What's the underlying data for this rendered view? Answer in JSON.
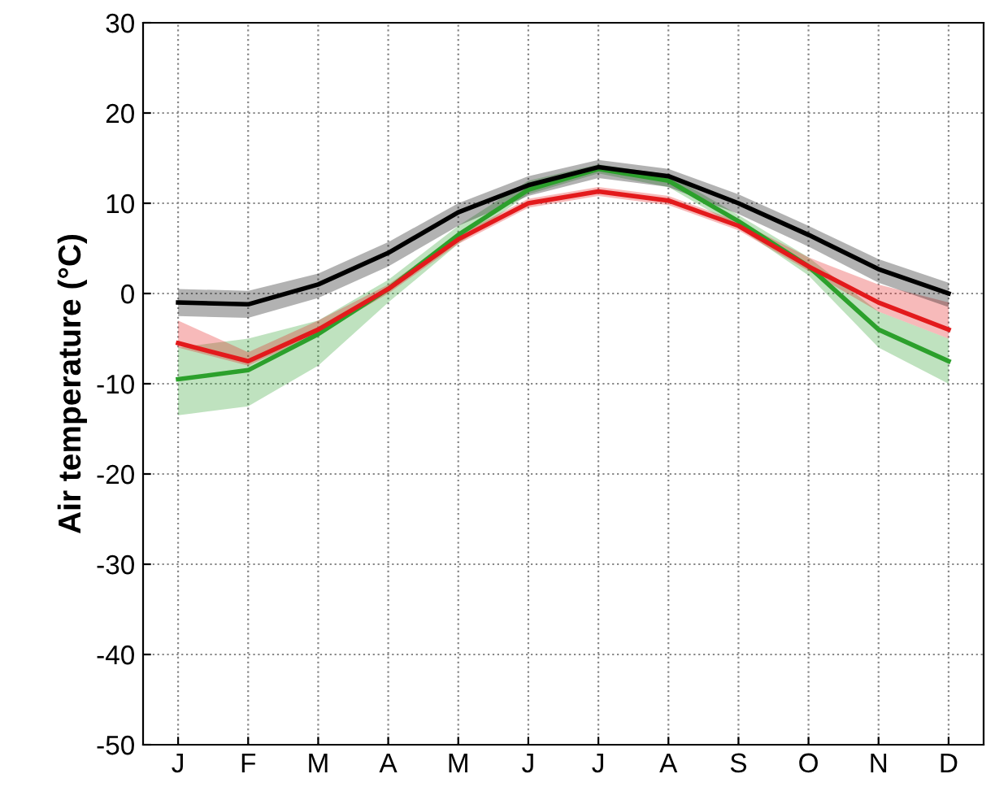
{
  "chart_data": {
    "type": "line",
    "ylabel": "Air temperature (°C)",
    "categories": [
      "J",
      "F",
      "M",
      "A",
      "M",
      "J",
      "J",
      "A",
      "S",
      "O",
      "N",
      "D"
    ],
    "ylim": [
      -50,
      30
    ],
    "yticks": [
      -50,
      -40,
      -30,
      -20,
      -10,
      0,
      10,
      20,
      30
    ],
    "grid": true,
    "line_style": "solid",
    "series": [
      {
        "color": "#2ca02c",
        "values": [
          -9.5,
          -8.5,
          -4.5,
          0.5,
          6.5,
          11.5,
          13.8,
          12.5,
          8,
          3,
          -4,
          -7.5
        ],
        "lower": [
          -13.5,
          -12.5,
          -8,
          -1,
          5.5,
          11,
          13.3,
          11.8,
          7.3,
          2,
          -6,
          -10
        ],
        "upper": [
          -6,
          -5,
          -3,
          1.5,
          7.5,
          12.5,
          14.3,
          13.2,
          8.7,
          4,
          -2,
          -5
        ]
      },
      {
        "color": "#e31a1c",
        "values": [
          -5.5,
          -7.5,
          -4,
          0.5,
          6,
          10,
          11.3,
          10.3,
          7.5,
          3,
          -1,
          -4
        ],
        "lower": [
          -6,
          -8,
          -4.5,
          0,
          5.5,
          9.5,
          10.8,
          9.8,
          7,
          2.5,
          -2,
          -5
        ],
        "upper": [
          -3,
          -6.5,
          -3,
          1,
          6.5,
          10.5,
          11.8,
          10.8,
          8,
          4,
          1,
          -1
        ]
      },
      {
        "color": "#000000",
        "values": [
          -1,
          -1.2,
          1,
          4.5,
          9,
          12,
          14,
          13,
          10,
          6.5,
          2.7,
          0
        ],
        "lower": [
          -2.5,
          -2.7,
          -0.5,
          3,
          7.5,
          10.8,
          12.8,
          11.8,
          8.8,
          5.2,
          1.2,
          -1.5
        ],
        "upper": [
          0.5,
          0.3,
          2.2,
          5.7,
          10,
          13,
          14.8,
          13.8,
          11,
          7.5,
          3.8,
          1.2
        ]
      }
    ]
  }
}
